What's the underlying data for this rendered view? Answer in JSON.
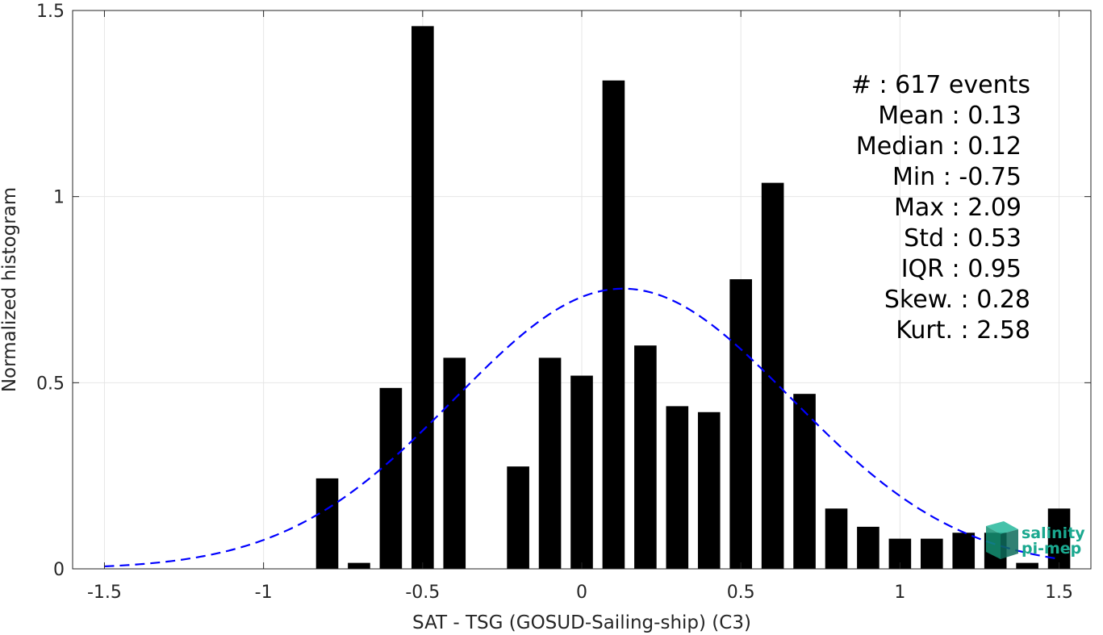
{
  "chart_data": {
    "type": "bar",
    "xlabel": "SAT - TSG (GOSUD-Sailing-ship) (C3)",
    "ylabel": "Normalized histogram",
    "xlim": [
      -1.6,
      1.6
    ],
    "ylim": [
      0,
      1.5
    ],
    "x_ticks": [
      "-1.5",
      "-1",
      "-0.5",
      "0",
      "0.5",
      "1",
      "1.5"
    ],
    "x_tick_values": [
      -1.5,
      -1,
      -0.5,
      0,
      0.5,
      1,
      1.5
    ],
    "y_ticks": [
      "0",
      "0.5",
      "1",
      "1.5"
    ],
    "y_tick_values": [
      0,
      0.5,
      1,
      1.5
    ],
    "grid": true,
    "bin_width": 0.1,
    "bars": {
      "x": [
        -0.8,
        -0.7,
        -0.6,
        -0.5,
        -0.4,
        -0.2,
        -0.1,
        0.0,
        0.1,
        0.2,
        0.3,
        0.4,
        0.5,
        0.6,
        0.7,
        0.8,
        0.9,
        1.0,
        1.1,
        1.2,
        1.3,
        1.4,
        1.5
      ],
      "values": [
        0.243,
        0.016,
        0.486,
        1.458,
        0.567,
        0.275,
        0.567,
        0.519,
        1.312,
        0.6,
        0.437,
        0.421,
        0.778,
        1.037,
        0.47,
        0.162,
        0.113,
        0.081,
        0.081,
        0.097,
        0.097,
        0.016,
        0.162
      ],
      "color": "#000000"
    },
    "fit_curve": {
      "style": "dashed",
      "color": "#0000ff",
      "mean": 0.13,
      "std": 0.53
    },
    "stats": [
      {
        "label": "#  : 617 events"
      },
      {
        "label": "Mean : 0.13"
      },
      {
        "label": "Median : 0.12"
      },
      {
        "label": "Min : -0.75"
      },
      {
        "label": "Max : 2.09"
      },
      {
        "label": "Std : 0.53"
      },
      {
        "label": "IQR : 0.95"
      },
      {
        "label": "Skew. : 0.28"
      },
      {
        "label": "Kurt. : 2.58"
      }
    ]
  },
  "logo": {
    "line1": "salinity",
    "line2": "pi-mep"
  }
}
